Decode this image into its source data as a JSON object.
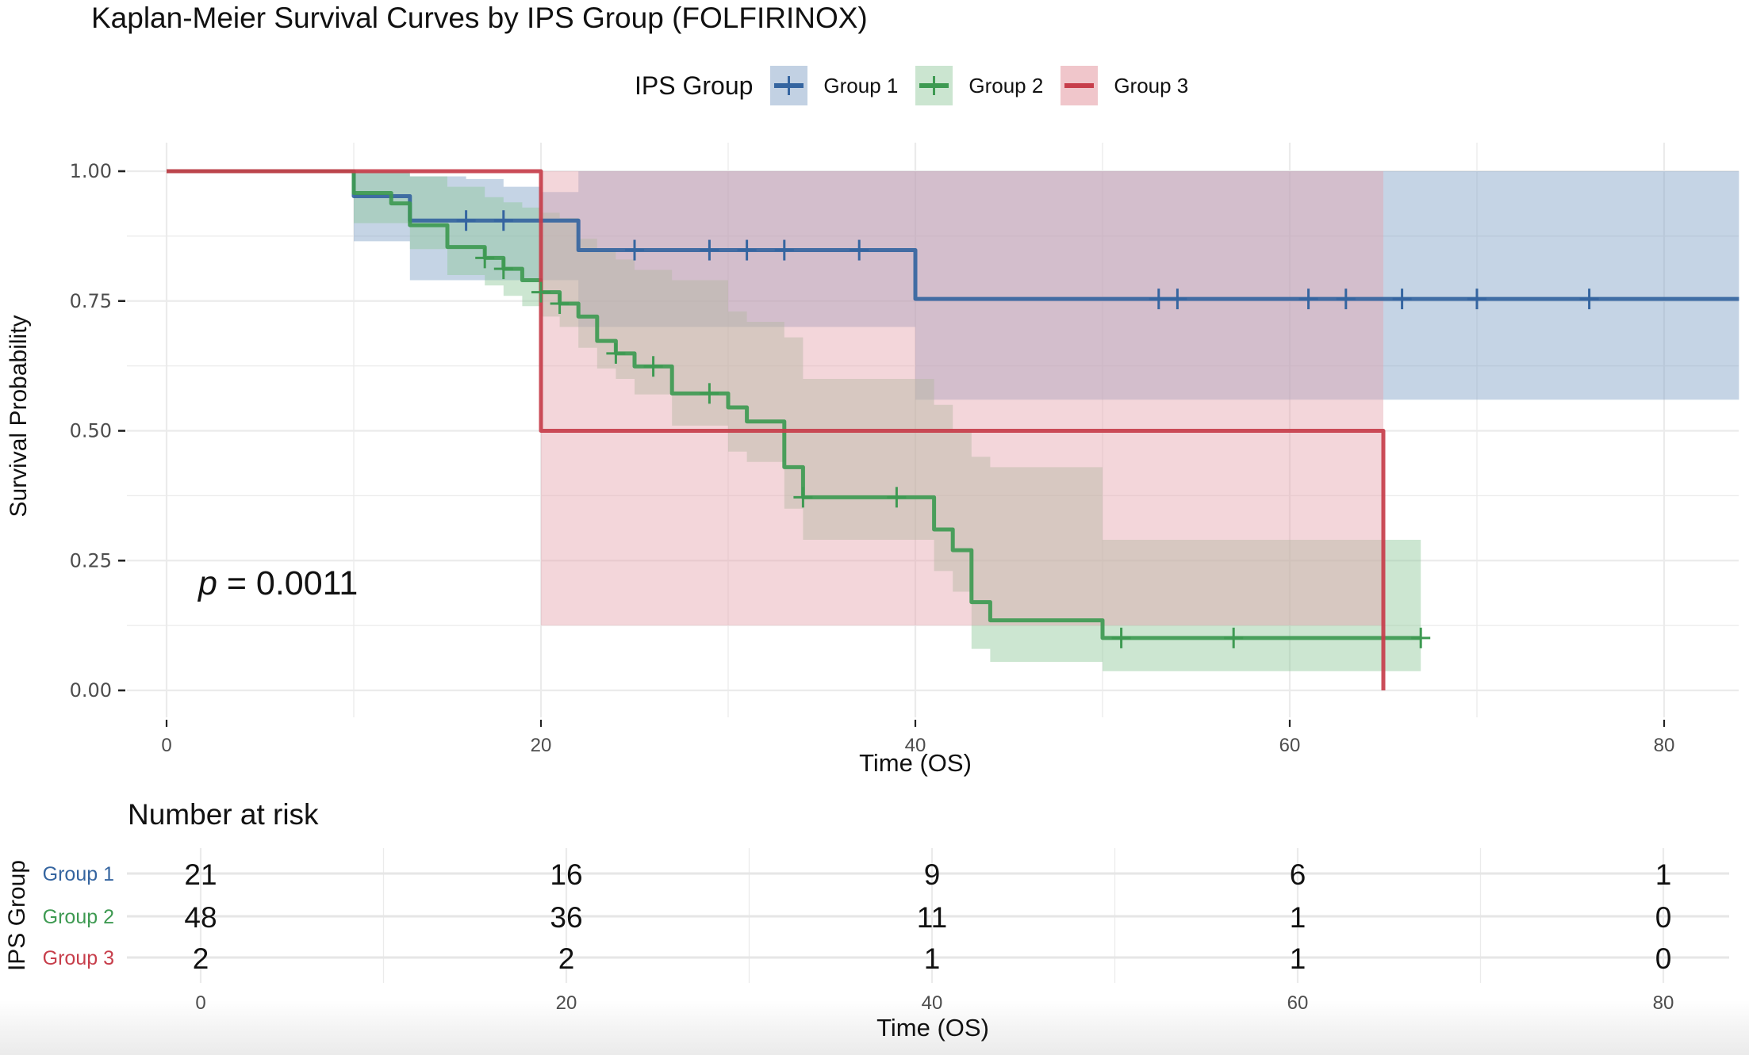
{
  "chart_data": {
    "type": "line",
    "subtype": "kaplan-meier step curves with confidence bands",
    "title": "Kaplan-Meier Survival Curves by IPS Group (FOLFIRINOX)",
    "xlabel": "Time (OS)",
    "ylabel": "Survival Probability",
    "xlim": [
      -2,
      84
    ],
    "ylim": [
      0,
      1
    ],
    "x_ticks": [
      "0",
      "20",
      "40",
      "60",
      "80"
    ],
    "x_tick_values": [
      0,
      20,
      40,
      60,
      80
    ],
    "y_ticks": [
      "0.00",
      "0.25",
      "0.50",
      "0.75",
      "1.00"
    ],
    "y_tick_values": [
      0,
      0.25,
      0.5,
      0.75,
      1.0
    ],
    "grid": true,
    "legend": {
      "title": "IPS Group",
      "position": "top",
      "entries": [
        "Group 1",
        "Group 2",
        "Group 3"
      ]
    },
    "annotation": {
      "prefix": "p",
      "text": " = 0.0011"
    },
    "series": [
      {
        "name": "Group 1",
        "color": "#3565A0",
        "fill": "#7FA0C6",
        "steps": [
          [
            0,
            1.0
          ],
          [
            10,
            0.952
          ],
          [
            13,
            0.905
          ],
          [
            22,
            0.848
          ],
          [
            40,
            0.754
          ]
        ],
        "end": 84,
        "ci": [
          [
            10,
            1.0,
            0.865
          ],
          [
            12,
            1.0,
            0.865
          ],
          [
            13,
            0.99,
            0.79
          ],
          [
            16,
            0.985,
            0.79
          ],
          [
            18,
            0.97,
            0.79
          ],
          [
            20,
            0.96,
            0.79
          ],
          [
            22,
            1.0,
            0.7
          ],
          [
            40,
            1.0,
            0.56
          ],
          [
            84,
            1.0,
            0.56
          ]
        ],
        "censor_times": [
          16,
          18,
          25,
          29,
          31,
          33,
          37,
          53,
          54,
          61,
          63,
          66,
          70,
          76
        ]
      },
      {
        "name": "Group 2",
        "color": "#3E9A52",
        "fill": "#8FC89A",
        "steps": [
          [
            0,
            1.0
          ],
          [
            10,
            0.958
          ],
          [
            12,
            0.938
          ],
          [
            13,
            0.896
          ],
          [
            15,
            0.854
          ],
          [
            17,
            0.833
          ],
          [
            18,
            0.812
          ],
          [
            19,
            0.79
          ],
          [
            20,
            0.767
          ],
          [
            21,
            0.745
          ],
          [
            22,
            0.72
          ],
          [
            23,
            0.673
          ],
          [
            24,
            0.649
          ],
          [
            25,
            0.624
          ],
          [
            27,
            0.572
          ],
          [
            30,
            0.545
          ],
          [
            31,
            0.518
          ],
          [
            33,
            0.43
          ],
          [
            34,
            0.372
          ],
          [
            41,
            0.31
          ],
          [
            42,
            0.27
          ],
          [
            43,
            0.17
          ],
          [
            44,
            0.135
          ],
          [
            50,
            0.101
          ]
        ],
        "end": 67,
        "ci": [
          [
            10,
            1.0,
            0.9
          ],
          [
            13,
            0.99,
            0.85
          ],
          [
            15,
            0.97,
            0.8
          ],
          [
            17,
            0.95,
            0.78
          ],
          [
            18,
            0.94,
            0.76
          ],
          [
            19,
            0.93,
            0.74
          ],
          [
            20,
            0.92,
            0.72
          ],
          [
            21,
            0.91,
            0.7
          ],
          [
            22,
            0.87,
            0.66
          ],
          [
            23,
            0.85,
            0.62
          ],
          [
            24,
            0.83,
            0.6
          ],
          [
            25,
            0.81,
            0.57
          ],
          [
            27,
            0.79,
            0.51
          ],
          [
            30,
            0.73,
            0.46
          ],
          [
            31,
            0.71,
            0.44
          ],
          [
            33,
            0.68,
            0.35
          ],
          [
            34,
            0.6,
            0.29
          ],
          [
            41,
            0.55,
            0.23
          ],
          [
            42,
            0.5,
            0.19
          ],
          [
            43,
            0.45,
            0.08
          ],
          [
            44,
            0.43,
            0.055
          ],
          [
            50,
            0.29,
            0.037
          ],
          [
            67,
            0.29,
            0.037
          ]
        ],
        "censor_times": [
          17,
          18,
          20,
          21,
          24,
          26,
          29,
          34,
          39,
          51,
          57,
          67
        ]
      },
      {
        "name": "Group 3",
        "color": "#C73E4B",
        "fill": "#E5A4AC",
        "steps": [
          [
            0,
            1.0
          ],
          [
            20,
            0.5
          ],
          [
            65,
            0.0
          ]
        ],
        "end": 65,
        "ci": [
          [
            20,
            1.0,
            0.125
          ],
          [
            65,
            1.0,
            0.125
          ]
        ],
        "censor_times": []
      }
    ],
    "risk_table": {
      "title": "Number at risk",
      "ylabel": "IPS Group",
      "xlabel": "Time (OS)",
      "times": [
        0,
        20,
        40,
        60,
        80
      ],
      "time_labels": [
        "0",
        "20",
        "40",
        "60",
        "80"
      ],
      "rows": [
        {
          "group": "Group 1",
          "color": "#3565A0",
          "counts": [
            "21",
            "16",
            "9",
            "6",
            "1"
          ]
        },
        {
          "group": "Group 2",
          "color": "#3E9A52",
          "counts": [
            "48",
            "36",
            "11",
            "1",
            "0"
          ]
        },
        {
          "group": "Group 3",
          "color": "#C73E4B",
          "counts": [
            "2",
            "2",
            "1",
            "1",
            "0"
          ]
        }
      ]
    }
  }
}
